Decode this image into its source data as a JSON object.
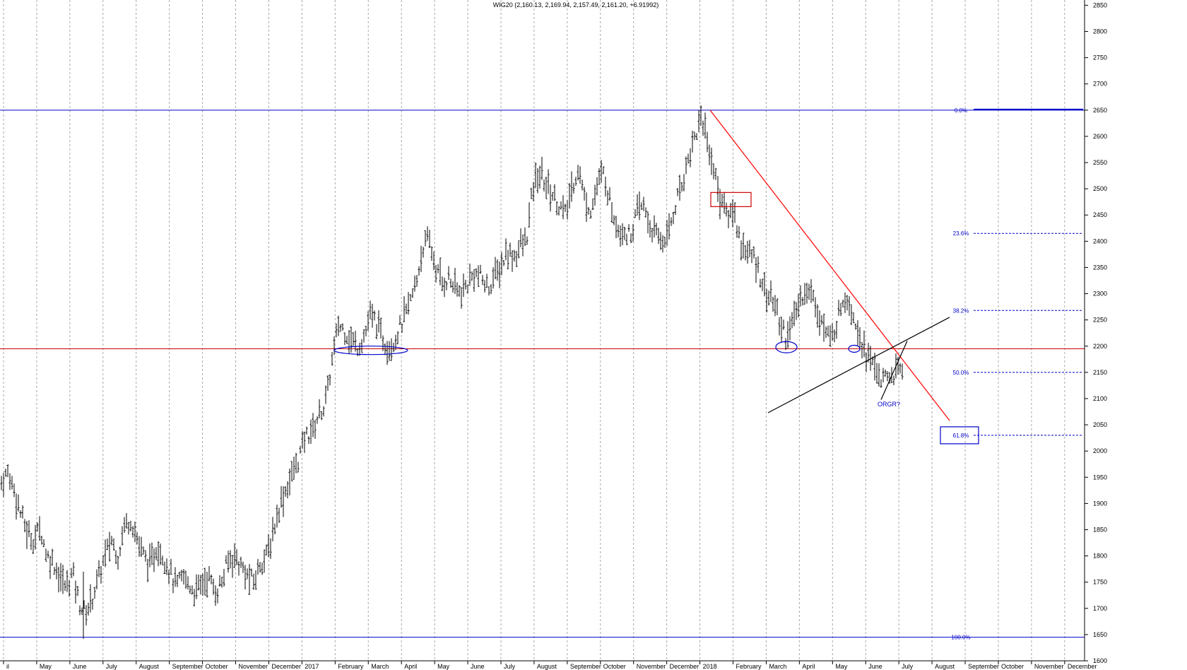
{
  "chart_data": {
    "type": "bar",
    "title": "WIG20 (2,160.13, 2,169.94, 2,157.49, 2,161.20, +6.91992)",
    "ylim": [
      1600,
      2860
    ],
    "y_ticks": [
      1600,
      1650,
      1700,
      1750,
      1800,
      1850,
      1900,
      1950,
      2000,
      2050,
      2100,
      2150,
      2200,
      2250,
      2300,
      2350,
      2400,
      2450,
      2500,
      2550,
      2600,
      2650,
      2700,
      2750,
      2800,
      2850
    ],
    "x_ticks": [
      "il",
      "May",
      "June",
      "July",
      "August",
      "September",
      "October",
      "November",
      "December",
      "2017",
      "February",
      "March",
      "April",
      "May",
      "June",
      "July",
      "August",
      "September",
      "October",
      "November",
      "December",
      "2018",
      "February",
      "March",
      "April",
      "May",
      "June",
      "July",
      "August",
      "September",
      "October",
      "November",
      "December"
    ],
    "grid": "vertical dotted",
    "price_trace": [
      1940,
      1960,
      1925,
      1880,
      1845,
      1830,
      1855,
      1800,
      1790,
      1760,
      1740,
      1770,
      1710,
      1690,
      1720,
      1760,
      1800,
      1830,
      1800,
      1860,
      1870,
      1830,
      1800,
      1780,
      1820,
      1800,
      1770,
      1740,
      1760,
      1745,
      1730,
      1750,
      1760,
      1730,
      1750,
      1790,
      1800,
      1780,
      1760,
      1750,
      1790,
      1800,
      1850,
      1900,
      1930,
      1960,
      1990,
      2030,
      2040,
      2070,
      2090,
      2170,
      2240,
      2230,
      2210,
      2200,
      2220,
      2260,
      2240,
      2210,
      2200,
      2220,
      2250,
      2280,
      2320,
      2390,
      2400,
      2350,
      2320,
      2330,
      2310,
      2300,
      2320,
      2340,
      2330,
      2310,
      2330,
      2350,
      2380,
      2370,
      2390,
      2400,
      2500,
      2530,
      2510,
      2490,
      2470,
      2450,
      2500,
      2540,
      2480,
      2460,
      2510,
      2530,
      2470,
      2430,
      2420,
      2410,
      2450,
      2470,
      2430,
      2410,
      2400,
      2420,
      2470,
      2510,
      2560,
      2600,
      2640,
      2590,
      2530,
      2480,
      2450,
      2460,
      2400,
      2380,
      2370,
      2340,
      2300,
      2290,
      2250,
      2220,
      2240,
      2280,
      2310,
      2300,
      2270,
      2230,
      2210,
      2250,
      2300,
      2280,
      2240,
      2200,
      2170,
      2160,
      2130,
      2140,
      2150,
      2160
    ],
    "bars_per_month": 4.45,
    "horizontal_lines": [
      {
        "name": "resistance-2650",
        "value": 2650,
        "color": "#0000cc"
      },
      {
        "name": "support-2195",
        "value": 2195,
        "color": "#cc0000"
      },
      {
        "name": "low-1645",
        "value": 1645,
        "color": "#0000cc"
      }
    ],
    "fib_levels": [
      {
        "label": "0.0%",
        "value": 2650
      },
      {
        "label": "23.6%",
        "value": 2415
      },
      {
        "label": "38.2%",
        "value": 2268
      },
      {
        "label": "50.0%",
        "value": 2150
      },
      {
        "label": "61.8%",
        "value": 2030
      }
    ],
    "annotations": [
      "ORGR?"
    ],
    "colors": {
      "price": "#000000",
      "blue": "#0000cc",
      "red": "#cc0000",
      "grid": "#a8a8a8",
      "axis": "#000000",
      "trendline": "#ff0000"
    }
  }
}
